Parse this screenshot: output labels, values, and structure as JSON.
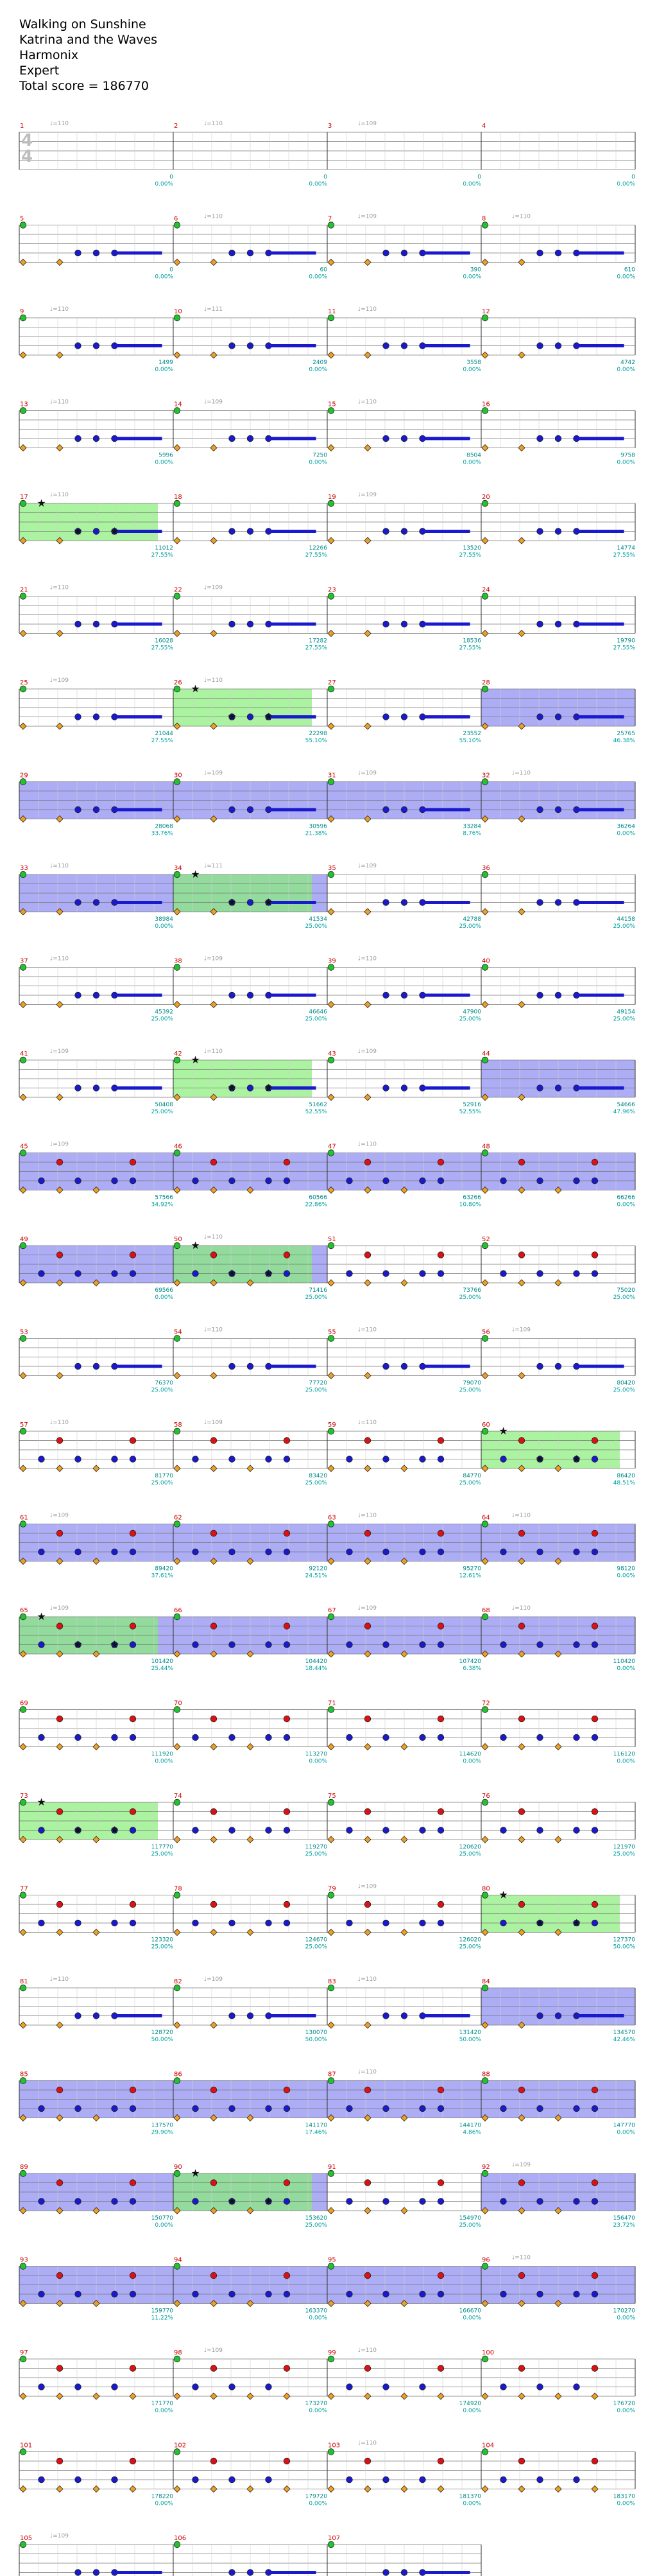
{
  "header": {
    "song": "Walking on Sunshine",
    "artist": "Katrina and the Waves",
    "source": "Harmonix",
    "difficulty": "Expert",
    "total_score_label": "Total score = 186770"
  },
  "colors": {
    "green": "#22c32e",
    "red": "#dd1111",
    "yellow": "#e8e800",
    "blue": "#1a1acc",
    "orange": "#f0a020",
    "starpower": "#88ee77",
    "overdrive": "#7777ee",
    "measure_number": "#cc0000",
    "score_text": "#008a8a"
  },
  "chart_data": {
    "type": "note chart",
    "time_signature": "4/4",
    "tempo_marks": [
      "♩=110",
      "♩=109",
      "♩=111"
    ],
    "measure_count": 107,
    "lane_colors": [
      "green",
      "red",
      "yellow",
      "blue",
      "orange"
    ],
    "rows": [
      {
        "m": [
          1,
          2,
          3,
          4
        ],
        "scores": [
          "0",
          "0",
          "0",
          "0"
        ],
        "pcts": [
          "0.00%",
          "0.00%",
          "0.00%",
          "0.00%"
        ],
        "tempos": [
          "♩=110",
          "♩=110",
          "♩=109",
          ""
        ],
        "pattern": "intro"
      },
      {
        "m": [
          5,
          6,
          7,
          8
        ],
        "scores": [
          "0",
          "60",
          "390",
          "610"
        ],
        "pcts": [
          "0.00%",
          "0.00%",
          "0.00%",
          "0.00%"
        ],
        "tempos": [
          "",
          "♩=110",
          "♩=109",
          "♩=110"
        ],
        "pattern": "groove"
      },
      {
        "m": [
          9,
          10,
          11,
          12
        ],
        "scores": [
          "1499",
          "2409",
          "3558",
          "4742"
        ],
        "pcts": [
          "0.00%",
          "0.00%",
          "0.00%",
          "0.00%"
        ],
        "tempos": [
          "♩=110",
          "♩=111",
          "♩=110",
          ""
        ],
        "pattern": "groove"
      },
      {
        "m": [
          13,
          14,
          15,
          16
        ],
        "scores": [
          "5996",
          "7250",
          "8504",
          "9758"
        ],
        "pcts": [
          "0.00%",
          "0.00%",
          "0.00%",
          "0.00%"
        ],
        "tempos": [
          "♩=110",
          "♩=109",
          "♩=110",
          ""
        ],
        "pattern": "groove"
      },
      {
        "m": [
          17,
          18,
          19,
          20
        ],
        "scores": [
          "11012",
          "12266",
          "13520",
          "14774"
        ],
        "pcts": [
          "27.55%",
          "27.55%",
          "27.55%",
          "27.55%"
        ],
        "tempos": [
          "♩=110",
          "",
          "♩=109",
          ""
        ],
        "pattern": "groove",
        "sp": [
          0
        ]
      },
      {
        "m": [
          21,
          22,
          23,
          24
        ],
        "scores": [
          "16028",
          "17282",
          "18536",
          "19790"
        ],
        "pcts": [
          "27.55%",
          "27.55%",
          "27.55%",
          "27.55%"
        ],
        "tempos": [
          "♩=110",
          "♩=109",
          "",
          ""
        ],
        "pattern": "groove"
      },
      {
        "m": [
          25,
          26,
          27,
          28
        ],
        "scores": [
          "21044",
          "22298",
          "23552",
          "25765"
        ],
        "pcts": [
          "27.55%",
          "55.10%",
          "55.10%",
          "46.38%"
        ],
        "tempos": [
          "♩=109",
          "♩=110",
          "",
          ""
        ],
        "pattern": "groove",
        "sp": [
          1
        ],
        "od": [
          3
        ]
      },
      {
        "m": [
          29,
          30,
          31,
          32
        ],
        "scores": [
          "28068",
          "30596",
          "33284",
          "36264"
        ],
        "pcts": [
          "33.76%",
          "21.38%",
          "8.76%",
          "0.00%"
        ],
        "tempos": [
          "",
          "♩=109",
          "♩=109",
          "♩=110"
        ],
        "pattern": "groove",
        "od": [
          0,
          1,
          2,
          3
        ]
      },
      {
        "m": [
          33,
          34,
          35,
          36
        ],
        "scores": [
          "38984",
          "41534",
          "42788",
          "44158"
        ],
        "pcts": [
          "0.00%",
          "25.00%",
          "25.00%",
          "25.00%"
        ],
        "tempos": [
          "♩=110",
          "♩=111",
          "♩=109",
          ""
        ],
        "pattern": "groove",
        "od": [
          0,
          1
        ],
        "sp": [
          1
        ]
      },
      {
        "m": [
          37,
          38,
          39,
          40
        ],
        "scores": [
          "45392",
          "46646",
          "47900",
          "49154"
        ],
        "pcts": [
          "25.00%",
          "25.00%",
          "25.00%",
          "25.00%"
        ],
        "tempos": [
          "♩=110",
          "♩=109",
          "♩=110",
          ""
        ],
        "pattern": "groove"
      },
      {
        "m": [
          41,
          42,
          43,
          44
        ],
        "scores": [
          "50408",
          "51662",
          "52916",
          "54666"
        ],
        "pcts": [
          "25.00%",
          "52.55%",
          "52.55%",
          "47.96%"
        ],
        "tempos": [
          "♩=109",
          "♩=110",
          "♩=109",
          ""
        ],
        "pattern": "groove",
        "sp": [
          1
        ],
        "od": [
          3
        ]
      },
      {
        "m": [
          45,
          46,
          47,
          48
        ],
        "scores": [
          "57566",
          "60566",
          "63266",
          "66266"
        ],
        "pcts": [
          "34.92%",
          "22.86%",
          "10.80%",
          "0.00%"
        ],
        "tempos": [
          "♩=109",
          "",
          "♩=110",
          ""
        ],
        "pattern": "chorus",
        "od": [
          0,
          1,
          2,
          3
        ]
      },
      {
        "m": [
          49,
          50,
          51,
          52
        ],
        "scores": [
          "69566",
          "71416",
          "73766",
          "75020"
        ],
        "pcts": [
          "0.00%",
          "25.00%",
          "25.00%",
          "25.00%"
        ],
        "tempos": [
          "",
          "♩=110",
          "",
          ""
        ],
        "pattern": "chorus",
        "od": [
          0,
          1
        ],
        "sp": [
          1
        ]
      },
      {
        "m": [
          53,
          54,
          55,
          56
        ],
        "scores": [
          "76370",
          "77720",
          "79070",
          "80420"
        ],
        "pcts": [
          "25.00%",
          "25.00%",
          "25.00%",
          "25.00%"
        ],
        "tempos": [
          "",
          "♩=110",
          "♩=110",
          "♩=109"
        ],
        "pattern": "groove"
      },
      {
        "m": [
          57,
          58,
          59,
          60
        ],
        "scores": [
          "81770",
          "83420",
          "84770",
          "86420"
        ],
        "pcts": [
          "25.00%",
          "25.00%",
          "25.00%",
          "48.51%"
        ],
        "tempos": [
          "♩=110",
          "♩=109",
          "♩=110",
          ""
        ],
        "pattern": "chorus",
        "sp": [
          3
        ]
      },
      {
        "m": [
          61,
          62,
          63,
          64
        ],
        "scores": [
          "89420",
          "92120",
          "95270",
          "98120"
        ],
        "pcts": [
          "37.61%",
          "24.51%",
          "12.61%",
          "0.00%"
        ],
        "tempos": [
          "♩=109",
          "",
          "♩=110",
          "♩=110"
        ],
        "pattern": "chorus",
        "od": [
          0,
          1,
          2,
          3
        ]
      },
      {
        "m": [
          65,
          66,
          67,
          68
        ],
        "scores": [
          "101420",
          "104420",
          "107420",
          "110420"
        ],
        "pcts": [
          "25.44%",
          "18.44%",
          "6.38%",
          "0.00%"
        ],
        "tempos": [
          "♩=109",
          "",
          "♩=109",
          "♩=110"
        ],
        "pattern": "chorus",
        "od": [
          0,
          1,
          2,
          3
        ],
        "sp": [
          0
        ]
      },
      {
        "m": [
          69,
          70,
          71,
          72
        ],
        "scores": [
          "111920",
          "113270",
          "114620",
          "116120"
        ],
        "pcts": [
          "0.00%",
          "0.00%",
          "0.00%",
          "0.00%"
        ],
        "tempos": [
          "",
          "",
          "",
          ""
        ],
        "pattern": "chorus"
      },
      {
        "m": [
          73,
          74,
          75,
          76
        ],
        "scores": [
          "117770",
          "119270",
          "120620",
          "121970"
        ],
        "pcts": [
          "25.00%",
          "25.00%",
          "25.00%",
          "25.00%"
        ],
        "tempos": [
          "",
          "",
          "",
          ""
        ],
        "pattern": "chorus",
        "sp": [
          0
        ]
      },
      {
        "m": [
          77,
          78,
          79,
          80
        ],
        "scores": [
          "123320",
          "124670",
          "126020",
          "127370"
        ],
        "pcts": [
          "25.00%",
          "25.00%",
          "25.00%",
          "50.00%"
        ],
        "tempos": [
          "",
          "",
          "♩=109",
          ""
        ],
        "pattern": "chorus",
        "sp": [
          3
        ]
      },
      {
        "m": [
          81,
          82,
          83,
          84
        ],
        "scores": [
          "128720",
          "130070",
          "131420",
          "134570"
        ],
        "pcts": [
          "50.00%",
          "50.00%",
          "50.00%",
          "42.46%"
        ],
        "tempos": [
          "♩=110",
          "♩=109",
          "♩=110",
          ""
        ],
        "pattern": "groove",
        "od": [
          3
        ]
      },
      {
        "m": [
          85,
          86,
          87,
          88
        ],
        "scores": [
          "137570",
          "141170",
          "144170",
          "147770"
        ],
        "pcts": [
          "29.90%",
          "17.46%",
          "4.86%",
          "0.00%"
        ],
        "tempos": [
          "",
          "",
          "♩=110",
          ""
        ],
        "pattern": "chorus",
        "od": [
          0,
          1,
          2,
          3
        ]
      },
      {
        "m": [
          89,
          90,
          91,
          92
        ],
        "scores": [
          "150770",
          "153620",
          "154970",
          "156470"
        ],
        "pcts": [
          "0.00%",
          "25.00%",
          "25.00%",
          "23.72%"
        ],
        "tempos": [
          "",
          "",
          "",
          "♩=109"
        ],
        "pattern": "chorus",
        "od": [
          0,
          1,
          3
        ],
        "sp": [
          1
        ]
      },
      {
        "m": [
          93,
          94,
          95,
          96
        ],
        "scores": [
          "159770",
          "163370",
          "166670",
          "170270"
        ],
        "pcts": [
          "11.22%",
          "0.00%",
          "0.00%",
          "0.00%"
        ],
        "tempos": [
          "",
          "",
          "",
          "♩=110"
        ],
        "pattern": "chorus",
        "od": [
          0,
          1,
          2,
          3
        ]
      },
      {
        "m": [
          97,
          98,
          99,
          100
        ],
        "scores": [
          "171770",
          "173270",
          "174920",
          "176720"
        ],
        "pcts": [
          "0.00%",
          "0.00%",
          "0.00%",
          "0.00%"
        ],
        "tempos": [
          "",
          "♩=109",
          "♩=110",
          ""
        ],
        "pattern": "outro"
      },
      {
        "m": [
          101,
          102,
          103,
          104
        ],
        "scores": [
          "178220",
          "179720",
          "181370",
          "183170"
        ],
        "pcts": [
          "0.00%",
          "0.00%",
          "0.00%",
          "0.00%"
        ],
        "tempos": [
          "",
          "",
          "♩=110",
          ""
        ],
        "pattern": "outro"
      },
      {
        "m": [
          105,
          106,
          107
        ],
        "scores": [
          "184820",
          "186620",
          "186770"
        ],
        "pcts": [
          "0.00%",
          "0.00%",
          "0.00%"
        ],
        "tempos": [
          "♩=109",
          "",
          ""
        ],
        "pattern": "groove"
      }
    ]
  }
}
